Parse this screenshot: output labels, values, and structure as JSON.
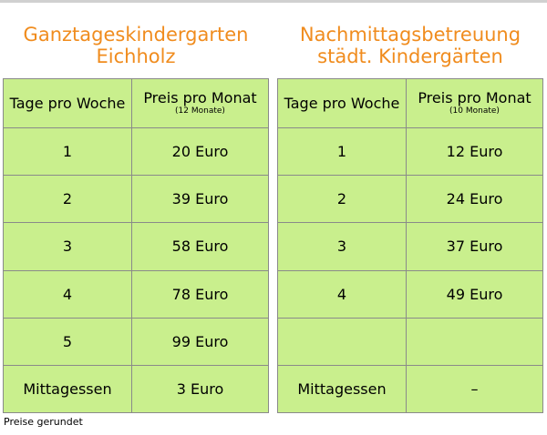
{
  "colors": {
    "title": "#f08c1e",
    "table_fill": "#c9ef8d",
    "grid": "#8a8a8a"
  },
  "left": {
    "title_line1": "Ganztageskindergarten",
    "title_line2": "Eichholz",
    "header_days": "Tage pro Woche",
    "header_price": "Preis pro Monat",
    "header_price_note": "(12 Monate)",
    "rows": [
      {
        "days": "1",
        "price": "20 Euro"
      },
      {
        "days": "2",
        "price": "39 Euro"
      },
      {
        "days": "3",
        "price": "58 Euro"
      },
      {
        "days": "4",
        "price": "78 Euro"
      },
      {
        "days": "5",
        "price": "99 Euro"
      }
    ],
    "meal_label": "Mittagessen",
    "meal_price": "3 Euro"
  },
  "right": {
    "title_line1": "Nachmittagsbetreuung",
    "title_line2": "städt. Kindergärten",
    "header_days": "Tage pro Woche",
    "header_price": "Preis pro Monat",
    "header_price_note": "(10 Monate)",
    "rows": [
      {
        "days": "1",
        "price": "12 Euro"
      },
      {
        "days": "2",
        "price": "24 Euro"
      },
      {
        "days": "3",
        "price": "37 Euro"
      },
      {
        "days": "4",
        "price": "49 Euro"
      },
      {
        "days": "",
        "price": ""
      }
    ],
    "meal_label": "Mittagessen",
    "meal_price": "–"
  },
  "footnote": "Preise gerundet"
}
